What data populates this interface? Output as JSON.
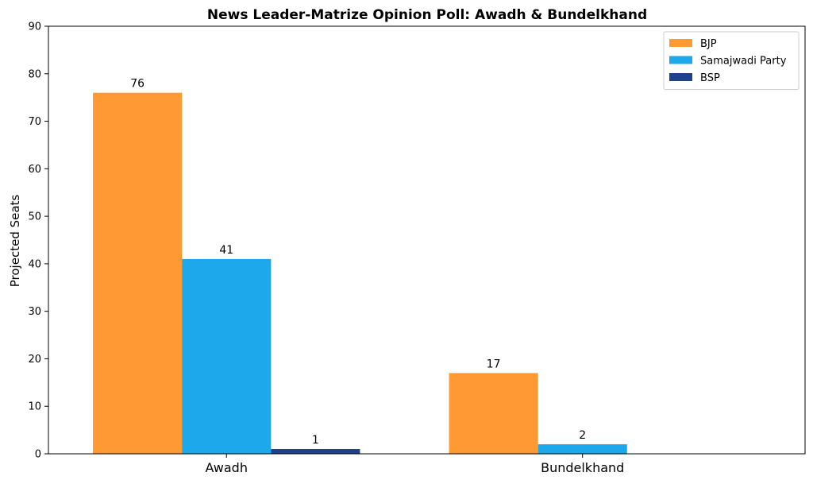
{
  "chart_data": {
    "type": "bar",
    "title": "News Leader-Matrize Opinion Poll: Awadh & Bundelkhand",
    "xlabel": "",
    "ylabel": "Projected Seats",
    "ylim": [
      0,
      90
    ],
    "yticks": [
      0,
      10,
      20,
      30,
      40,
      50,
      60,
      70,
      80,
      90
    ],
    "categories": [
      "Awadh",
      "Bundelkhand"
    ],
    "series": [
      {
        "name": "BJP",
        "color": "#FF9933",
        "values": [
          76,
          17
        ]
      },
      {
        "name": "Samajwadi Party",
        "color": "#1CA8EA",
        "values": [
          41,
          2
        ]
      },
      {
        "name": "BSP",
        "color": "#1F3F8F",
        "values": [
          1,
          0
        ]
      }
    ],
    "data_labels_shown": true,
    "grid": false,
    "legend": "top-right"
  }
}
